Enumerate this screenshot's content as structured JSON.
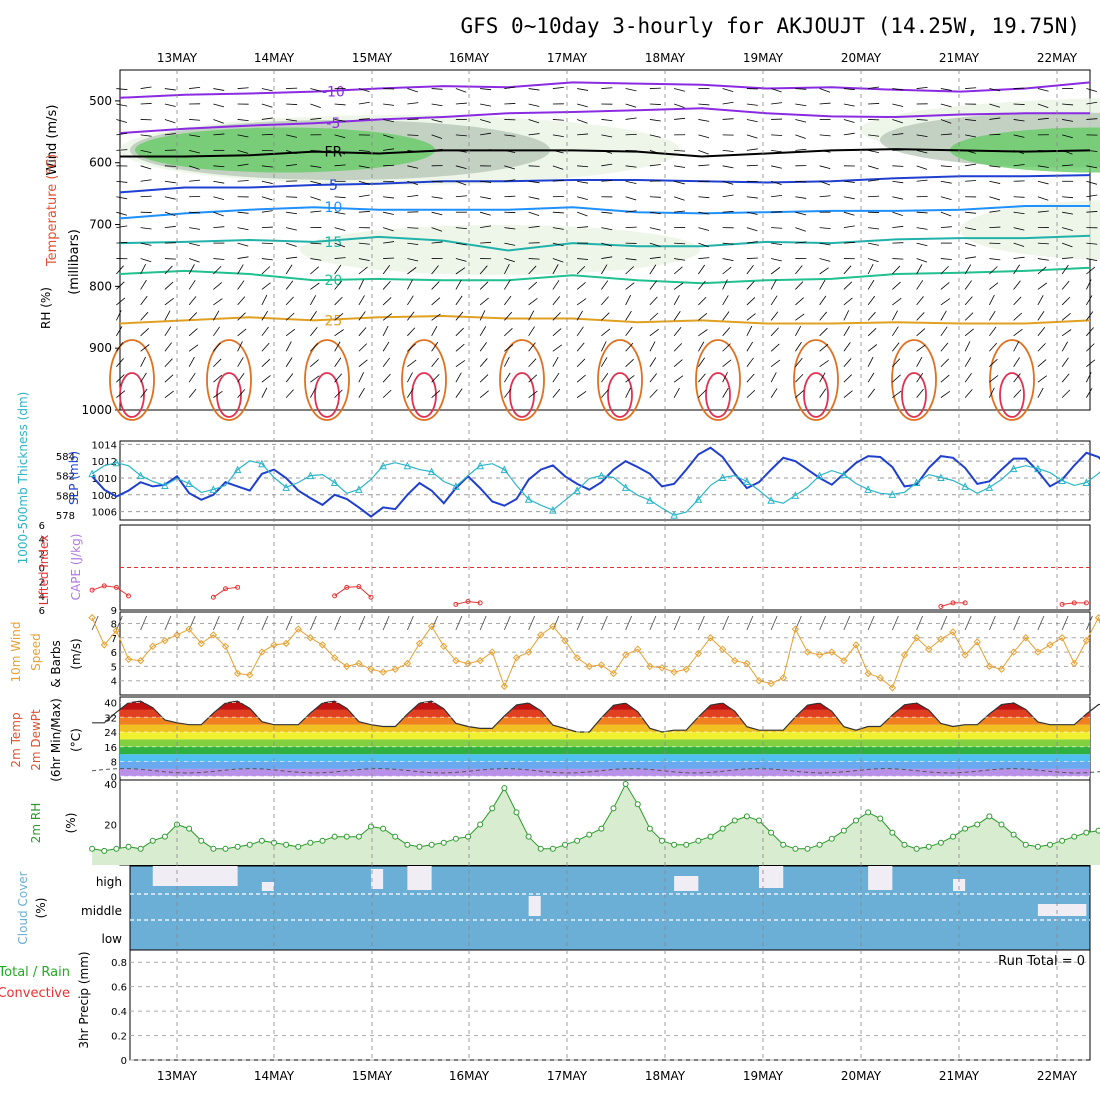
{
  "title": "GFS 0~10day 3-hourly for AKJOUJT (14.25W, 19.75N)",
  "dates": [
    "13MAY",
    "14MAY",
    "15MAY",
    "16MAY",
    "17MAY",
    "18MAY",
    "19MAY",
    "20MAY",
    "21MAY",
    "22MAY"
  ],
  "colors": {
    "wind_barb": "#000000",
    "rh_light": "#e8f4e4",
    "rh_mid": "#b8c8b8",
    "rh_green": "#66cc66",
    "rh_bright": "#33ee33",
    "slp": "#1f3fd0",
    "thickness": "#2ab5c8",
    "lifted_index": "#e83030",
    "wind10": "#e8a030",
    "rh2m_fill": "#d8ecd0",
    "rh2m_line": "#2a9a2a",
    "cloud": "#6baed6",
    "cloud_clear": "#f0eef4"
  },
  "chart_data": [
    {
      "panel": "upper-air",
      "type": "heatmap",
      "ylabel_parts": [
        "Wind (m/s)",
        "Temperature (°C)",
        "RH (%)",
        "(millibars)"
      ],
      "y_ticks": [
        500,
        600,
        700,
        800,
        900,
        1000
      ],
      "ylim": [
        450,
        1000
      ],
      "reversed_y": true,
      "temperature_contours": [
        {
          "label": "-10",
          "level_mb": [
            495,
            490,
            488,
            485,
            480,
            476,
            478,
            470,
            472,
            474,
            480,
            478,
            482,
            485,
            480,
            470
          ],
          "color": "#8a2be2"
        },
        {
          "label": "-5",
          "level_mb": [
            552,
            545,
            540,
            536,
            530,
            526,
            520,
            518,
            515,
            512,
            520,
            525,
            526,
            522,
            520,
            520
          ],
          "color": "#8a2be2"
        },
        {
          "label": "FR",
          "level_mb": [
            590,
            590,
            588,
            582,
            585,
            580,
            580,
            580,
            582,
            590,
            585,
            580,
            578,
            580,
            582,
            580
          ],
          "color": "#000000"
        },
        {
          "label": "5",
          "level_mb": [
            648,
            640,
            640,
            636,
            634,
            630,
            630,
            628,
            628,
            630,
            632,
            630,
            625,
            622,
            622,
            620
          ],
          "color": "#1f3fd0"
        },
        {
          "label": "10",
          "level_mb": [
            690,
            682,
            676,
            672,
            676,
            676,
            676,
            672,
            680,
            682,
            680,
            678,
            678,
            676,
            670,
            670
          ],
          "color": "#1e90ff"
        },
        {
          "label": "15",
          "level_mb": [
            730,
            728,
            725,
            728,
            720,
            726,
            742,
            730,
            735,
            735,
            728,
            730,
            724,
            722,
            722,
            718
          ],
          "color": "#20b2aa"
        },
        {
          "label": "20",
          "level_mb": [
            780,
            775,
            780,
            790,
            788,
            790,
            790,
            782,
            790,
            795,
            790,
            788,
            780,
            778,
            775,
            770
          ],
          "color": "#20c090"
        },
        {
          "label": "25",
          "level_mb": [
            860,
            855,
            850,
            855,
            850,
            848,
            852,
            852,
            858,
            855,
            860,
            860,
            858,
            860,
            860,
            855
          ],
          "color": "#e0a020"
        }
      ]
    },
    {
      "panel": "slp-thickness",
      "type": "line",
      "y_ticks_left": [
        578,
        580,
        582,
        584
      ],
      "y_ticks_right": [
        1006,
        1008,
        1010,
        1012,
        1014
      ],
      "series": [
        {
          "name": "SLP (mb)",
          "axis": "right",
          "values": [
            1010.2,
            1008.6,
            1007.8,
            1008.5,
            1009.5,
            1009.0,
            1009.2,
            1010.2,
            1008.2,
            1007.4,
            1008.0,
            1009.5,
            1009.0,
            1008.5,
            1010.5,
            1011.0,
            1010.0,
            1008.5,
            1007.6,
            1006.8,
            1008.0,
            1007.5,
            1006.5,
            1005.4,
            1006.5,
            1006.3,
            1008.0,
            1009.4,
            1008.5,
            1007.0,
            1008.8,
            1010.2,
            1008.8,
            1007.2,
            1006.7,
            1007.5,
            1009.8,
            1011.0,
            1011.5,
            1010.2,
            1009.3,
            1008.6,
            1009.5,
            1011.0,
            1012.0,
            1011.3,
            1010.5,
            1009.0,
            1009.3,
            1011.0,
            1012.8,
            1013.6,
            1012.5,
            1010.5,
            1008.8,
            1009.5,
            1011.0,
            1012.4,
            1012.0,
            1011.0,
            1010.0,
            1009.2,
            1010.5,
            1011.8,
            1012.6,
            1012.5,
            1011.3,
            1009.0,
            1009.2,
            1011.2,
            1012.6,
            1012.4,
            1011.2,
            1009.3,
            1009.6,
            1011.0,
            1012.3,
            1012.3,
            1010.8,
            1009.0,
            1009.8,
            1011.5,
            1013.0,
            1012.5,
            1011.0,
            1009.5,
            1010.0,
            1011.3,
            1012.0,
            1011.0,
            1010.3,
            1010.2,
            1011.5,
            1012.5,
            1011.0,
            1010.2,
            1010.3
          ]
        },
        {
          "name": "Thickness (dm)",
          "axis": "left",
          "values": [
            582.2,
            583.0,
            583.3,
            583.0,
            582.0,
            581.4,
            581.0,
            581.7,
            581.2,
            580.3,
            580.6,
            581.0,
            582.6,
            583.5,
            583.2,
            581.8,
            580.8,
            581.3,
            582.0,
            582.1,
            581.3,
            580.2,
            580.6,
            581.6,
            583.0,
            583.3,
            583.0,
            582.6,
            582.4,
            581.4,
            580.9,
            582.0,
            583.0,
            583.2,
            582.6,
            581.0,
            579.6,
            579.0,
            578.5,
            579.5,
            580.5,
            581.7,
            582.0,
            581.8,
            580.8,
            580.0,
            579.5,
            578.7,
            578.0,
            578.3,
            579.6,
            581.0,
            581.8,
            582.0,
            581.4,
            580.5,
            579.5,
            579.2,
            580.0,
            580.8,
            582.0,
            582.5,
            582.1,
            581.2,
            580.6,
            580.2,
            580.1,
            580.3,
            581.3,
            582.1,
            581.8,
            581.5,
            580.9,
            580.2,
            580.8,
            581.6,
            582.7,
            583.0,
            582.7,
            582.3,
            581.5,
            581.0,
            581.3,
            582.2,
            583.4,
            583.3,
            582.5,
            581.5,
            582.3,
            583.1,
            584.0,
            584.6,
            584.0,
            583.5,
            583.0,
            582.8,
            583.2
          ]
        }
      ]
    },
    {
      "panel": "lifted-index-cape",
      "type": "line",
      "y_ticks": [
        "-6",
        "-4",
        "-2",
        "0",
        "2",
        "4",
        "6"
      ],
      "cape_tick": "9",
      "segments": [
        {
          "x": [
            0,
            1,
            2,
            3
          ],
          "values": [
            3.2,
            2.6,
            2.8,
            4.0
          ]
        },
        {
          "x": [
            10,
            11,
            12
          ],
          "values": [
            4.2,
            3.0,
            2.8
          ]
        },
        {
          "x": [
            20,
            21,
            22,
            23
          ],
          "values": [
            4.0,
            2.8,
            2.7,
            4.2
          ]
        },
        {
          "x": [
            30,
            31,
            32
          ],
          "values": [
            5.2,
            4.8,
            5.0
          ]
        },
        {
          "x": [
            70,
            71,
            72
          ],
          "values": [
            5.5,
            5.0,
            5.0
          ]
        },
        {
          "x": [
            80,
            81,
            82
          ],
          "values": [
            5.2,
            5.0,
            5.0
          ]
        },
        {
          "x": [
            90,
            91,
            92
          ],
          "values": [
            5.2,
            4.8,
            5.0
          ]
        }
      ]
    },
    {
      "panel": "wind10m",
      "type": "line",
      "y_ticks": [
        4,
        5,
        6,
        7,
        8
      ],
      "values": [
        8.4,
        6.5,
        7.5,
        5.5,
        5.4,
        6.4,
        6.8,
        7.2,
        7.6,
        6.6,
        7.2,
        6.4,
        4.5,
        4.4,
        6.0,
        6.5,
        6.6,
        7.6,
        7.0,
        6.5,
        5.6,
        5.0,
        5.2,
        4.8,
        4.6,
        4.8,
        5.2,
        6.6,
        7.8,
        6.4,
        5.4,
        5.2,
        5.4,
        6.0,
        3.6,
        5.6,
        6.0,
        7.2,
        7.8,
        6.8,
        5.6,
        5.0,
        5.1,
        4.5,
        5.8,
        6.2,
        5.0,
        4.9,
        4.6,
        4.8,
        5.9,
        7.0,
        6.2,
        5.4,
        5.2,
        4.0,
        3.8,
        4.2,
        7.6,
        6.0,
        5.8,
        6.0,
        5.4,
        6.5,
        4.5,
        4.2,
        3.5,
        5.8,
        7.0,
        6.2,
        6.9,
        7.4,
        5.8,
        6.7,
        5.0,
        4.8,
        6.0,
        7.0,
        6.0,
        6.5,
        7.0,
        5.2,
        6.8,
        8.4,
        5.4,
        6.4,
        6.3,
        5.6,
        6.8,
        7.0,
        3.8,
        5.8,
        6.4,
        7.0,
        5.8,
        6.8,
        6.0
      ]
    },
    {
      "panel": "temperature-2m",
      "type": "area",
      "y_ticks": [
        0,
        8,
        16,
        24,
        32,
        40
      ],
      "ylabel": "(°C)",
      "daily_max": [
        41,
        41,
        41,
        41,
        40,
        40,
        40,
        40,
        40,
        40
      ],
      "daily_min": [
        29,
        28,
        28,
        27,
        26,
        24,
        25,
        25,
        27,
        28
      ]
    },
    {
      "panel": "rh-2m",
      "type": "area",
      "y_ticks": [
        20,
        40
      ],
      "ylabel": "(%)",
      "values": [
        8,
        7,
        8,
        9,
        8,
        12,
        14,
        20,
        18,
        12,
        8,
        8,
        9,
        10,
        12,
        11,
        10,
        9,
        11,
        12,
        14,
        14,
        14,
        19,
        18,
        14,
        10,
        9,
        10,
        11,
        13,
        14,
        20,
        28,
        38,
        26,
        14,
        8,
        8,
        10,
        12,
        15,
        18,
        28,
        40,
        30,
        18,
        12,
        10,
        10,
        12,
        14,
        18,
        22,
        24,
        22,
        16,
        10,
        8,
        8,
        10,
        13,
        17,
        22,
        26,
        23,
        16,
        10,
        8,
        9,
        11,
        14,
        18,
        20,
        24,
        20,
        15,
        10,
        9,
        10,
        12,
        14,
        16,
        17,
        17,
        15,
        13,
        10,
        8,
        8,
        11,
        13,
        14,
        18,
        16,
        16,
        15
      ]
    },
    {
      "panel": "cloud-cover",
      "type": "heatmap",
      "rows": [
        "high",
        "middle",
        "low"
      ],
      "ylabel": "(%)"
    },
    {
      "panel": "precip-3hr",
      "type": "bar",
      "y_ticks": [
        "0",
        "0.2",
        "0.4",
        "0.6",
        "0.8"
      ],
      "run_total_label": "Run Total = 0",
      "values": []
    }
  ],
  "labels": {
    "upper_wind": "Wind (m/s)",
    "upper_temp": "Temperature (°C)",
    "upper_rh": "RH (%)",
    "millibars": "(millibars)",
    "slp": "SLP (mb)",
    "thickness": "1000-500mb Thickness (dm)",
    "lifted_index": "Lifted Index",
    "cape": "CAPE (J/kg)",
    "wind10_line1": "10m Wind",
    "wind10_line2": "Speed",
    "wind10_line3": "(m/s)",
    "wind10_barbs": "& Barbs",
    "temp_2m": "2m Temp",
    "dewpt_2m": "2m DewPt",
    "minmax": "(6hr Min/Max)",
    "temp_unit": "(°C)",
    "rh_2m": "2m RH",
    "rh_unit": "(%)",
    "cloud": "Cloud Cover",
    "cloud_unit": "(%)",
    "cloud_high": "high",
    "cloud_middle": "middle",
    "cloud_low": "low",
    "precip_total": "Total / Rain",
    "precip_conv": "Convective",
    "precip_axis": "3hr Precip (mm)",
    "run_total": "Run Total = 0"
  }
}
